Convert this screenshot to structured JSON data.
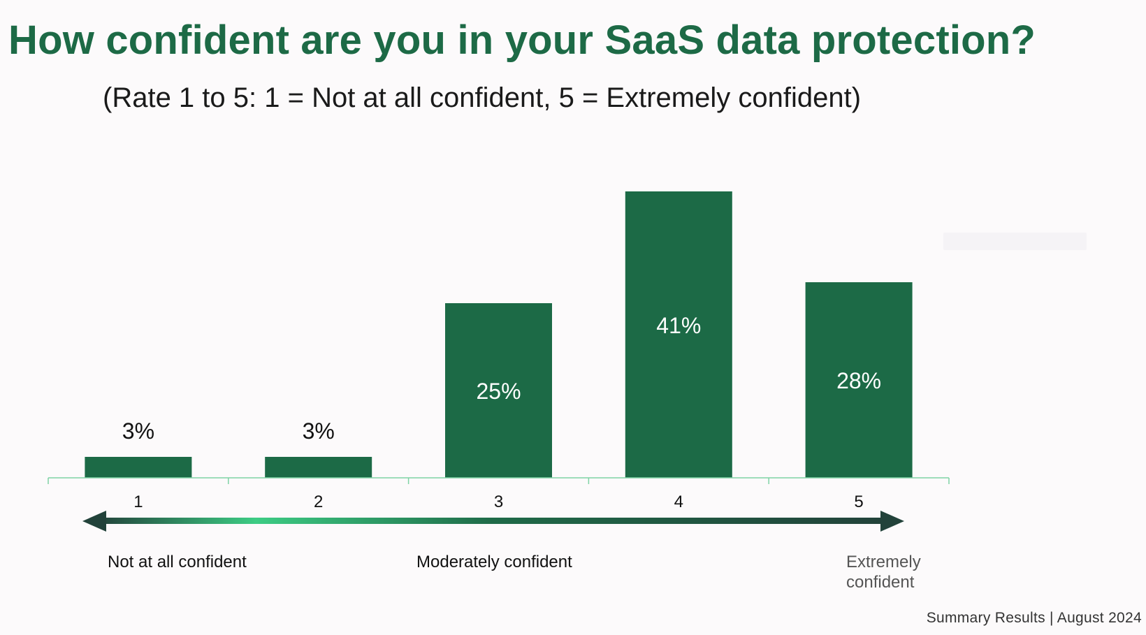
{
  "chart_data": {
    "type": "bar",
    "title": "How confident are you in your SaaS data protection?",
    "subtitle": "(Rate 1 to 5: 1 = Not at all confident, 5 = Extremely confident)",
    "categories": [
      "1",
      "2",
      "3",
      "4",
      "5"
    ],
    "values": [
      3,
      3,
      25,
      41,
      28
    ],
    "data_labels": [
      "3%",
      "3%",
      "25%",
      "41%",
      "28%"
    ],
    "ylim": [
      0,
      41
    ],
    "xlabel": "",
    "ylabel": "",
    "grid": false,
    "legend": "none",
    "scale_labels": {
      "low": "Not at all confident",
      "mid": "Moderately confident",
      "high": "Extremely confident"
    }
  },
  "footer": "Summary Results | August 2024",
  "colors": {
    "title": "#1d6a46",
    "bar": "#1c6a46",
    "axis": "#7fd3a5",
    "arrow_bright": "#3dcc84",
    "arrow_dark": "#22423a"
  }
}
